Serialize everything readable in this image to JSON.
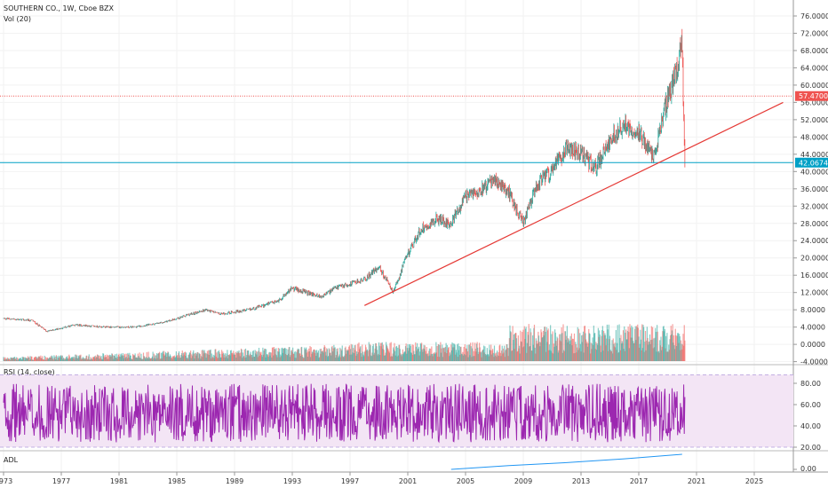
{
  "header": {
    "title": "SOUTHERN CO., 1W, Cboe BZX",
    "vol_label": "Vol (20)"
  },
  "price_axis": {
    "ticks": [
      "76.0000",
      "72.0000",
      "68.0000",
      "64.0000",
      "60.0000",
      "56.0000",
      "52.0000",
      "48.0000",
      "44.0000",
      "40.0000",
      "36.0000",
      "32.0000",
      "28.0000",
      "24.0000",
      "20.0000",
      "16.0000",
      "12.0000",
      "8.0000",
      "4.0000",
      "0.0000",
      "-4.0000"
    ]
  },
  "rsi_panel": {
    "label": "RSI (14, close)",
    "ticks": [
      "80.00",
      "60.00",
      "40.00",
      "20.00"
    ]
  },
  "adl_panel": {
    "label": "ADL",
    "ticks": [
      "0.00"
    ]
  },
  "time_axis": {
    "labels": [
      "1973",
      "1977",
      "1981",
      "1985",
      "1989",
      "1993",
      "1997",
      "2001",
      "2005",
      "2009",
      "2013",
      "2017",
      "2021",
      "2025"
    ]
  },
  "badges": {
    "resistance": "57.4700",
    "last_price": "42.0674"
  },
  "colors": {
    "up": "#26a69a",
    "down": "#ef5350",
    "rsi_line": "#9c27b0",
    "rsi_band": "#f3e5f5",
    "adl_line": "#2196f3",
    "resistance_line": "#ef5350",
    "support_line": "#00a0c6",
    "trendline": "#e53935"
  },
  "chart_data": [
    {
      "type": "line",
      "title": "SOUTHERN CO., 1W, Cboe BZX",
      "x": [
        1973,
        1975,
        1976,
        1978,
        1980,
        1982,
        1984,
        1986,
        1987,
        1988,
        1990,
        1992,
        1993,
        1995,
        1996,
        1998,
        1999,
        2000,
        2001,
        2002,
        2003,
        2004,
        2005,
        2006,
        2007,
        2008,
        2009,
        2010,
        2011,
        2012,
        2013,
        2014,
        2015,
        2016,
        2017,
        2018,
        2019,
        2019.5,
        2020,
        2020.1,
        2020.2
      ],
      "series": [
        {
          "values": [
            6,
            5.5,
            3,
            4.5,
            4,
            4,
            5,
            7,
            8,
            7,
            8,
            10,
            13,
            11,
            13,
            15,
            18,
            12,
            21,
            27,
            29,
            28,
            34,
            36,
            38,
            35,
            28,
            37,
            40,
            46,
            44,
            41,
            47,
            51,
            49,
            43,
            57,
            62,
            70,
            52,
            42
          ]
        }
      ],
      "ylim": [
        -4,
        78
      ],
      "annotations": [
        {
          "type": "horizontal_line",
          "value": 57.47
        },
        {
          "type": "horizontal_line",
          "value": 42.0674
        },
        {
          "type": "trendline",
          "from": [
            1998,
            9
          ],
          "to": [
            2027,
            56
          ]
        }
      ]
    },
    {
      "type": "bar",
      "title": "Vol (20)",
      "x_range": [
        1973,
        2020.2
      ]
    },
    {
      "type": "line",
      "title": "RSI (14, close)",
      "ylim": [
        10,
        90
      ],
      "bands": [
        70,
        30
      ],
      "x_range": [
        1973,
        2020.2
      ]
    },
    {
      "type": "line",
      "title": "ADL",
      "x": [
        2004,
        2008,
        2012,
        2016,
        2020
      ],
      "series": [
        {
          "values": [
            0,
            0.25,
            0.45,
            0.7,
            1.0
          ]
        }
      ]
    }
  ]
}
